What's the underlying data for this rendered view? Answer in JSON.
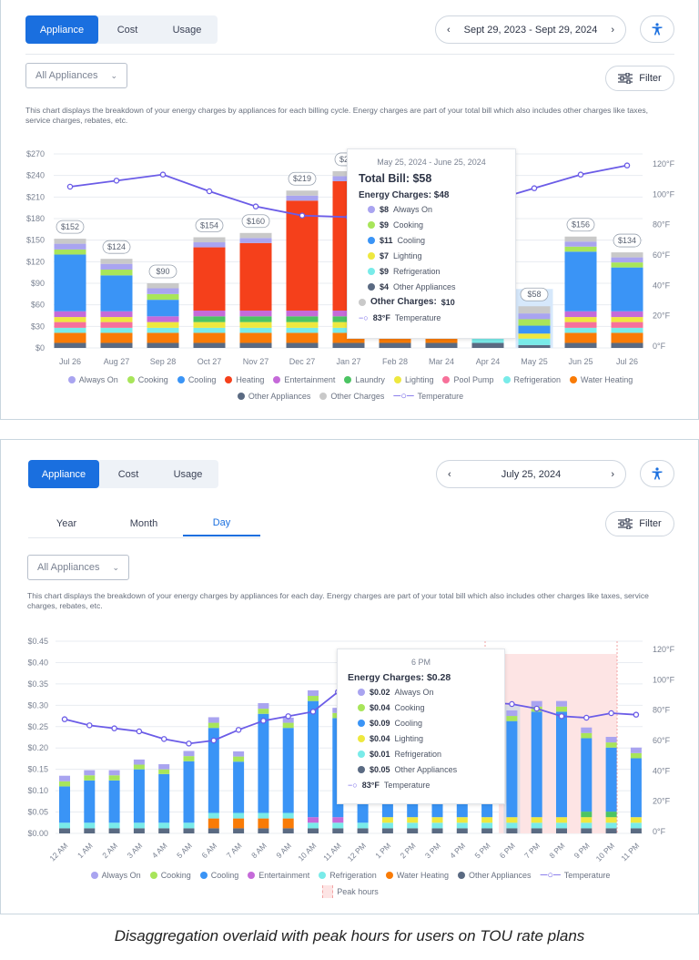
{
  "colors": {
    "always_on": "#a9a4f0",
    "cooking": "#a8e55a",
    "cooling": "#3a94f6",
    "heating": "#f5401b",
    "entertainment": "#c56ad9",
    "laundry": "#4cc463",
    "lighting": "#eee83f",
    "pool_pump": "#f7719a",
    "refrigeration": "#79ebe9",
    "water_heating": "#f97b06",
    "other_appliances": "#5a6a82",
    "other_charges": "#c9c9c9",
    "temperature": "#6b5ce7",
    "accent": "#1a6fdf",
    "peak": "#fde4e4"
  },
  "series_order": [
    "other_appliances",
    "water_heating",
    "refrigeration",
    "pool_pump",
    "lighting",
    "laundry",
    "entertainment",
    "cooling",
    "heating",
    "cooking",
    "always_on",
    "other_charges"
  ],
  "panel1": {
    "tabs": [
      "Appliance",
      "Cost",
      "Usage"
    ],
    "active_tab": "Appliance",
    "date_range": "Sept 29, 2023 - Sept 29, 2024",
    "accessibility_icon": "accessibility-icon",
    "dropdown": "All Appliances",
    "filter_label": "Filter",
    "description": "This chart displays the breakdown of your energy charges by appliances for each billing cycle. Energy charges are part of your total bill which also includes other charges like taxes, service charges, rebates, etc.",
    "legend": [
      {
        "key": "always_on",
        "label": "Always On"
      },
      {
        "key": "cooking",
        "label": "Cooking"
      },
      {
        "key": "cooling",
        "label": "Cooling"
      },
      {
        "key": "heating",
        "label": "Heating"
      },
      {
        "key": "entertainment",
        "label": "Entertainment"
      },
      {
        "key": "laundry",
        "label": "Laundry"
      },
      {
        "key": "lighting",
        "label": "Lighting"
      },
      {
        "key": "pool_pump",
        "label": "Pool Pump"
      },
      {
        "key": "refrigeration",
        "label": "Refrigeration"
      },
      {
        "key": "water_heating",
        "label": "Water Heating"
      },
      {
        "key": "other_appliances",
        "label": "Other Appliances"
      },
      {
        "key": "other_charges",
        "label": "Other Charges"
      },
      {
        "key": "temperature",
        "label": "Temperature"
      }
    ],
    "tooltip": {
      "period": "May 25, 2024 - June 25, 2024",
      "total": "Total Bill: $58",
      "energy": "Energy Charges: $48",
      "items": [
        {
          "key": "always_on",
          "value": "$8",
          "label": "Always On"
        },
        {
          "key": "cooking",
          "value": "$9",
          "label": "Cooking"
        },
        {
          "key": "cooling",
          "value": "$11",
          "label": "Cooling"
        },
        {
          "key": "lighting",
          "value": "$7",
          "label": "Lighting"
        },
        {
          "key": "refrigeration",
          "value": "$9",
          "label": "Refrigeration"
        },
        {
          "key": "other_appliances",
          "value": "$4",
          "label": "Other Appliances"
        }
      ],
      "other_label": "Other Charges:",
      "other_value": "$10",
      "temp_value": "83°F",
      "temp_label": "Temperature"
    }
  },
  "panel2": {
    "tabs": [
      "Appliance",
      "Cost",
      "Usage"
    ],
    "active_tab": "Appliance",
    "date": "July 25, 2024",
    "periods": [
      "Year",
      "Month",
      "Day"
    ],
    "active_period": "Day",
    "dropdown": "All Appliances",
    "filter_label": "Filter",
    "description": "This chart displays the breakdown of your energy charges by appliances for each day. Energy charges are part of your total bill which also includes other charges like taxes, service charges, rebates, etc.",
    "legend": [
      {
        "key": "always_on",
        "label": "Always On"
      },
      {
        "key": "cooking",
        "label": "Cooking"
      },
      {
        "key": "cooling",
        "label": "Cooling"
      },
      {
        "key": "entertainment",
        "label": "Entertainment"
      },
      {
        "key": "refrigeration",
        "label": "Refrigeration"
      },
      {
        "key": "water_heating",
        "label": "Water Heating"
      },
      {
        "key": "other_appliances",
        "label": "Other Appliances"
      },
      {
        "key": "temperature",
        "label": "Temperature"
      },
      {
        "key": "peak",
        "label": "Peak hours"
      }
    ],
    "tooltip": {
      "hour": "6 PM",
      "energy": "Energy Charges: $0.28",
      "items": [
        {
          "key": "always_on",
          "value": "$0.02",
          "label": "Always On"
        },
        {
          "key": "cooking",
          "value": "$0.04",
          "label": "Cooking"
        },
        {
          "key": "cooling",
          "value": "$0.09",
          "label": "Cooling"
        },
        {
          "key": "lighting",
          "value": "$0.04",
          "label": "Lighting"
        },
        {
          "key": "refrigeration",
          "value": "$0.01",
          "label": "Refrigeration"
        },
        {
          "key": "other_appliances",
          "value": "$0.05",
          "label": "Other Appliances"
        }
      ],
      "temp_value": "83°F",
      "temp_label": "Temperature"
    }
  },
  "caption": "Disaggregation overlaid with peak hours for users on TOU rate plans",
  "chart_data": [
    {
      "type": "bar",
      "stacked": true,
      "ylim": [
        0,
        270
      ],
      "y_ticks": [
        "$0",
        "$30",
        "$60",
        "$90",
        "$120",
        "$150",
        "$180",
        "$210",
        "$240",
        "$270"
      ],
      "y2lim": [
        0,
        120
      ],
      "y2_ticks": [
        "0°F",
        "20°F",
        "40°F",
        "60°F",
        "80°F",
        "100°F",
        "120°F"
      ],
      "grid": true,
      "legend": "bottom",
      "highlight": "May 25",
      "categories": [
        "Jul 26",
        "Aug 27",
        "Sep 28",
        "Oct 27",
        "Nov 27",
        "Dec 27",
        "Jan 27",
        "Feb 28",
        "Mar 24",
        "Apr 24",
        "May 25",
        "Jun 25",
        "Jul 26"
      ],
      "totals": [
        "$152",
        "$124",
        "$90",
        "$154",
        "$160",
        "$219",
        "$246",
        null,
        null,
        null,
        "$58",
        "$156",
        "$134"
      ],
      "bars": [
        {
          "other_appliances": 7,
          "water_heating": 14,
          "refrigeration": 7,
          "pool_pump": 8,
          "lighting": 7,
          "entertainment": 8,
          "cooling": 79,
          "cooking": 7,
          "always_on": 8,
          "other_charges": 7
        },
        {
          "other_appliances": 7,
          "water_heating": 14,
          "refrigeration": 7,
          "pool_pump": 8,
          "lighting": 7,
          "entertainment": 8,
          "cooling": 50,
          "cooking": 8,
          "always_on": 8,
          "other_charges": 7
        },
        {
          "other_appliances": 7,
          "water_heating": 14,
          "refrigeration": 7,
          "lighting": 8,
          "entertainment": 8,
          "cooling": 23,
          "cooking": 8,
          "always_on": 8,
          "other_charges": 7
        },
        {
          "other_appliances": 7,
          "water_heating": 14,
          "refrigeration": 7,
          "lighting": 8,
          "laundry": 8,
          "entertainment": 8,
          "heating": 88,
          "always_on": 7,
          "other_charges": 7
        },
        {
          "other_appliances": 7,
          "water_heating": 14,
          "refrigeration": 7,
          "lighting": 8,
          "laundry": 8,
          "entertainment": 8,
          "heating": 94,
          "always_on": 7,
          "other_charges": 7
        },
        {
          "other_appliances": 7,
          "water_heating": 14,
          "refrigeration": 7,
          "lighting": 8,
          "laundry": 8,
          "entertainment": 8,
          "heating": 153,
          "always_on": 7,
          "other_charges": 7
        },
        {
          "other_appliances": 7,
          "water_heating": 14,
          "refrigeration": 7,
          "lighting": 8,
          "laundry": 8,
          "entertainment": 8,
          "heating": 180,
          "always_on": 7,
          "other_charges": 7
        },
        {
          "other_appliances": 7,
          "water_heating": 14,
          "refrigeration": 7,
          "lighting": 8,
          "laundry": 8,
          "entertainment": 8,
          "heating": 40,
          "always_on": 7,
          "other_charges": 7
        },
        {
          "other_appliances": 7,
          "water_heating": 14,
          "refrigeration": 7,
          "lighting": 8,
          "entertainment": 8,
          "heating": 20,
          "always_on": 7,
          "other_charges": 7
        },
        {
          "other_appliances": 7,
          "refrigeration": 7,
          "lighting": 7,
          "cooking": 7,
          "always_on": 6,
          "other_charges": 6
        },
        {
          "other_appliances": 4,
          "refrigeration": 9,
          "lighting": 7,
          "cooling": 11,
          "cooking": 9,
          "always_on": 8,
          "other_charges": 10
        },
        {
          "other_appliances": 7,
          "water_heating": 14,
          "refrigeration": 7,
          "pool_pump": 8,
          "lighting": 7,
          "entertainment": 8,
          "cooling": 83,
          "cooking": 7,
          "always_on": 7,
          "other_charges": 7
        },
        {
          "other_appliances": 7,
          "water_heating": 14,
          "refrigeration": 7,
          "pool_pump": 8,
          "lighting": 7,
          "entertainment": 8,
          "cooling": 61,
          "cooking": 7,
          "always_on": 7,
          "other_charges": 7
        }
      ],
      "temperature": [
        105,
        109,
        113,
        102,
        92,
        86,
        85,
        84,
        86,
        95,
        104,
        113,
        119
      ]
    },
    {
      "type": "bar",
      "stacked": true,
      "ylim": [
        0,
        0.45
      ],
      "y_ticks": [
        "$0.00",
        "$0.05",
        "$0.10",
        "$0.15",
        "$0.20",
        "$0.25",
        "$0.30",
        "$0.35",
        "$0.40",
        "$0.45"
      ],
      "y2lim": [
        0,
        120
      ],
      "y2_ticks": [
        "0°F",
        "20°F",
        "40°F",
        "60°F",
        "80°F",
        "100°F",
        "120°F"
      ],
      "grid": true,
      "legend": "bottom",
      "highlight": "6 PM",
      "peak_hours": [
        "6 PM",
        "7 PM",
        "8 PM",
        "9 PM",
        "10 PM"
      ],
      "categories": [
        "12 AM",
        "1 AM",
        "2 AM",
        "3 AM",
        "4 AM",
        "5 AM",
        "6 AM",
        "7 AM",
        "8 AM",
        "9 AM",
        "10 AM",
        "11 AM",
        "12 PM",
        "1 PM",
        "2 PM",
        "3 PM",
        "4 PM",
        "5 PM",
        "6 PM",
        "7 PM",
        "8 PM",
        "9 PM",
        "10 PM",
        "11 PM"
      ],
      "bars": [
        {
          "other_appliances": 0.012,
          "refrigeration": 0.013,
          "cooling": 0.085,
          "cooking": 0.012,
          "always_on": 0.013
        },
        {
          "other_appliances": 0.012,
          "refrigeration": 0.013,
          "cooling": 0.099,
          "cooking": 0.012,
          "always_on": 0.012
        },
        {
          "other_appliances": 0.012,
          "refrigeration": 0.013,
          "cooling": 0.099,
          "cooking": 0.012,
          "always_on": 0.012
        },
        {
          "other_appliances": 0.012,
          "refrigeration": 0.013,
          "cooling": 0.125,
          "cooking": 0.011,
          "always_on": 0.012
        },
        {
          "other_appliances": 0.012,
          "refrigeration": 0.013,
          "cooling": 0.114,
          "cooking": 0.011,
          "always_on": 0.012
        },
        {
          "other_appliances": 0.012,
          "refrigeration": 0.013,
          "cooling": 0.144,
          "cooking": 0.012,
          "always_on": 0.012
        },
        {
          "other_appliances": 0.012,
          "water_heating": 0.023,
          "refrigeration": 0.013,
          "cooling": 0.199,
          "cooking": 0.012,
          "always_on": 0.013
        },
        {
          "other_appliances": 0.012,
          "water_heating": 0.023,
          "refrigeration": 0.013,
          "cooling": 0.12,
          "cooking": 0.012,
          "always_on": 0.012
        },
        {
          "other_appliances": 0.012,
          "water_heating": 0.023,
          "refrigeration": 0.013,
          "cooling": 0.232,
          "cooking": 0.012,
          "always_on": 0.013
        },
        {
          "other_appliances": 0.012,
          "water_heating": 0.023,
          "refrigeration": 0.013,
          "cooling": 0.199,
          "cooking": 0.012,
          "always_on": 0.012
        },
        {
          "other_appliances": 0.012,
          "refrigeration": 0.013,
          "entertainment": 0.013,
          "cooling": 0.272,
          "cooking": 0.012,
          "always_on": 0.013
        },
        {
          "other_appliances": 0.012,
          "refrigeration": 0.013,
          "entertainment": 0.013,
          "cooling": 0.232,
          "cooking": 0.012,
          "always_on": 0.012
        },
        {
          "other_appliances": 0.012,
          "refrigeration": 0.013,
          "cooling": 0.25,
          "cooking": 0.012,
          "always_on": 0.013
        },
        {
          "other_appliances": 0.012,
          "refrigeration": 0.013,
          "lighting": 0.013,
          "cooling": 0.23,
          "cooking": 0.012,
          "always_on": 0.012
        },
        {
          "other_appliances": 0.012,
          "refrigeration": 0.013,
          "lighting": 0.013,
          "cooling": 0.225,
          "cooking": 0.012,
          "always_on": 0.012
        },
        {
          "other_appliances": 0.012,
          "refrigeration": 0.013,
          "lighting": 0.013,
          "cooling": 0.225,
          "cooking": 0.012,
          "always_on": 0.012
        },
        {
          "other_appliances": 0.012,
          "refrigeration": 0.013,
          "lighting": 0.013,
          "cooling": 0.23,
          "cooking": 0.012,
          "always_on": 0.012
        },
        {
          "other_appliances": 0.012,
          "refrigeration": 0.013,
          "lighting": 0.013,
          "cooling": 0.22,
          "cooking": 0.012,
          "always_on": 0.012
        },
        {
          "other_appliances": 0.012,
          "refrigeration": 0.013,
          "lighting": 0.013,
          "cooling": 0.225,
          "cooking": 0.012,
          "always_on": 0.013
        },
        {
          "other_appliances": 0.012,
          "refrigeration": 0.013,
          "lighting": 0.013,
          "cooling": 0.247,
          "cooking": 0.012,
          "always_on": 0.013
        },
        {
          "other_appliances": 0.012,
          "refrigeration": 0.013,
          "lighting": 0.013,
          "cooling": 0.247,
          "cooking": 0.012,
          "always_on": 0.013
        },
        {
          "other_appliances": 0.012,
          "refrigeration": 0.013,
          "lighting": 0.013,
          "laundry": 0.013,
          "cooling": 0.172,
          "cooking": 0.012,
          "always_on": 0.013
        },
        {
          "other_appliances": 0.012,
          "refrigeration": 0.013,
          "lighting": 0.013,
          "laundry": 0.013,
          "cooling": 0.15,
          "cooking": 0.012,
          "always_on": 0.013
        },
        {
          "other_appliances": 0.012,
          "refrigeration": 0.013,
          "lighting": 0.013,
          "cooling": 0.138,
          "cooking": 0.012,
          "always_on": 0.013
        }
      ],
      "temperature": [
        74,
        70,
        68,
        66,
        61,
        58,
        60,
        67,
        73,
        76,
        79,
        92,
        93,
        93,
        92,
        90,
        87,
        85,
        84,
        81,
        76,
        75,
        78,
        77
      ]
    }
  ]
}
